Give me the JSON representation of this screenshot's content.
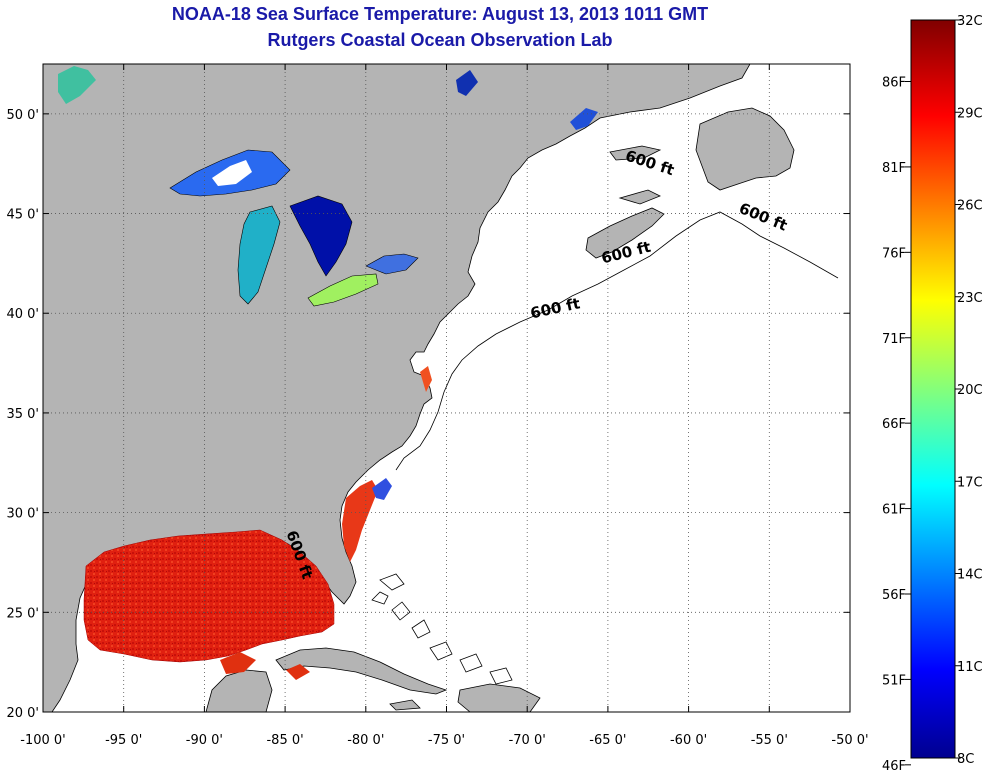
{
  "title": "NOAA-18 Sea Surface Temperature:  August 13, 2013 1011 GMT",
  "subtitle": "Rutgers Coastal Ocean Observation Lab",
  "map": {
    "lon_range": [
      -100,
      -50
    ],
    "lat_range": [
      20,
      52.5
    ],
    "x_ticks": [
      "-100 0'",
      "-95 0'",
      "-90 0'",
      "-85 0'",
      "-80 0'",
      "-75 0'",
      "-70 0'",
      "-65 0'",
      "-60 0'",
      "-55 0'",
      "-50 0'"
    ],
    "x_tick_values": [
      -100,
      -95,
      -90,
      -85,
      -80,
      -75,
      -70,
      -65,
      -60,
      -55,
      -50
    ],
    "y_ticks": [
      "20 0'",
      "25 0'",
      "30 0'",
      "35 0'",
      "40 0'",
      "45 0'",
      "50 0'"
    ],
    "y_tick_values": [
      20,
      25,
      30,
      35,
      40,
      45,
      50
    ],
    "grid": "dotted",
    "colors": {
      "land": "#b4b4b4",
      "ocean": "#ffffff",
      "coast": "#000000"
    },
    "contour_labels": [
      {
        "text": "600 ft",
        "lon": -62.5,
        "lat": 47.3
      },
      {
        "text": "600 ft",
        "lon": -55.5,
        "lat": 44.6
      },
      {
        "text": "600 ft",
        "lon": -63.8,
        "lat": 42.8
      },
      {
        "text": "600 ft",
        "lon": -68.2,
        "lat": 40.0
      },
      {
        "text": "600 ft",
        "lon": -84.4,
        "lat": 27.8
      }
    ]
  },
  "colorbar": {
    "min_c": 8,
    "max_c": 32,
    "celsius_labels": [
      "32C",
      "29C",
      "26C",
      "23C",
      "20C",
      "17C",
      "14C",
      "11C",
      "8C"
    ],
    "celsius_values": [
      32,
      29,
      26,
      23,
      20,
      17,
      14,
      11,
      8
    ],
    "fahrenheit_labels": [
      "86F",
      "81F",
      "76F",
      "71F",
      "66F",
      "61F",
      "56F",
      "51F",
      "46F"
    ],
    "fahrenheit_values": [
      86,
      81,
      76,
      71,
      66,
      61,
      56,
      51,
      46
    ],
    "colormap": "jet",
    "stops": [
      "#00008f",
      "#0000ff",
      "#00ffff",
      "#ffff00",
      "#ff0000",
      "#800000"
    ]
  }
}
